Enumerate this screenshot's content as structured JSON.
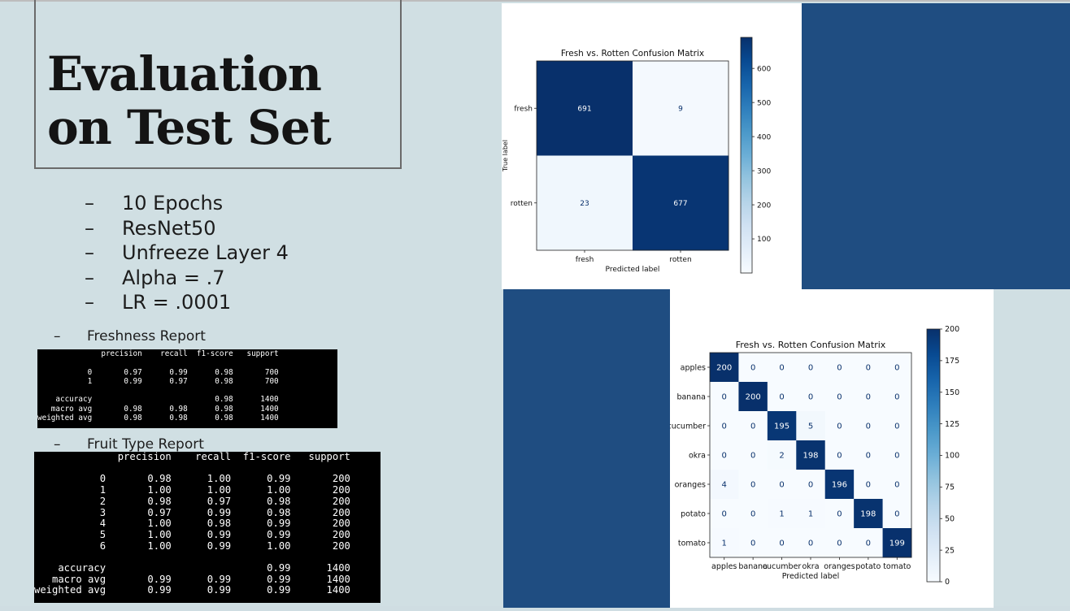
{
  "slide": {
    "title_line1": "Evaluation",
    "title_line2": "on Test Set",
    "bullet_marker": "–",
    "bullets": [
      "10 Epochs",
      "ResNet50",
      "Unfreeze Layer 4",
      "Alpha = .7",
      "LR = .0001"
    ],
    "freshness_label": "Freshness Report",
    "fruit_label": "Fruit Type Report",
    "freshness_report": "              precision    recall  f1-score   support\n\n           0       0.97      0.99      0.98       700\n           1       0.99      0.97      0.98       700\n\n    accuracy                           0.98      1400\n   macro avg       0.98      0.98      0.98      1400\nweighted avg       0.98      0.98      0.98      1400",
    "fruit_report": "              precision    recall  f1-score   support\n\n           0       0.98      1.00      0.99       200\n           1       1.00      1.00      1.00       200\n           2       0.98      0.97      0.98       200\n           3       0.97      0.99      0.98       200\n           4       1.00      0.98      0.99       200\n           5       1.00      0.99      0.99       200\n           6       1.00      0.99      1.00       200\n\n    accuracy                           0.99      1400\n   macro avg       0.99      0.99      0.99      1400\nweighted avg       0.99      0.99      0.99      1400"
  },
  "colors": {
    "background": "#d0dfe3",
    "panel_blue": "#1f4d81",
    "cmap_dark": "#08306b",
    "cmap_light": "#f7fbff"
  },
  "chart_data": [
    {
      "type": "heatmap",
      "title": "Fresh vs. Rotten Confusion Matrix",
      "xlabel": "Predicted label",
      "ylabel": "True label",
      "x_categories": [
        "fresh",
        "rotten"
      ],
      "y_categories": [
        "fresh",
        "rotten"
      ],
      "values": [
        [
          691,
          9
        ],
        [
          23,
          677
        ]
      ],
      "colorbar_ticks": [
        100,
        200,
        300,
        400,
        500,
        600
      ],
      "colorbar_range": [
        0,
        691
      ]
    },
    {
      "type": "heatmap",
      "title": "Fresh vs. Rotten Confusion Matrix",
      "xlabel": "Predicted label",
      "ylabel": "",
      "x_categories": [
        "apples",
        "banana",
        "cucumber",
        "okra",
        "oranges",
        "potato",
        "tomato"
      ],
      "y_categories": [
        "apples",
        "banana",
        "cucumber",
        "okra",
        "oranges",
        "potato",
        "tomato"
      ],
      "values": [
        [
          200,
          0,
          0,
          0,
          0,
          0,
          0
        ],
        [
          0,
          200,
          0,
          0,
          0,
          0,
          0
        ],
        [
          0,
          0,
          195,
          5,
          0,
          0,
          0
        ],
        [
          0,
          0,
          2,
          198,
          0,
          0,
          0
        ],
        [
          4,
          0,
          0,
          0,
          196,
          0,
          0
        ],
        [
          0,
          0,
          1,
          1,
          0,
          198,
          0
        ],
        [
          1,
          0,
          0,
          0,
          0,
          0,
          199
        ]
      ],
      "colorbar_ticks": [
        0,
        25,
        50,
        75,
        100,
        125,
        150,
        175,
        200
      ],
      "colorbar_range": [
        0,
        200
      ]
    }
  ]
}
